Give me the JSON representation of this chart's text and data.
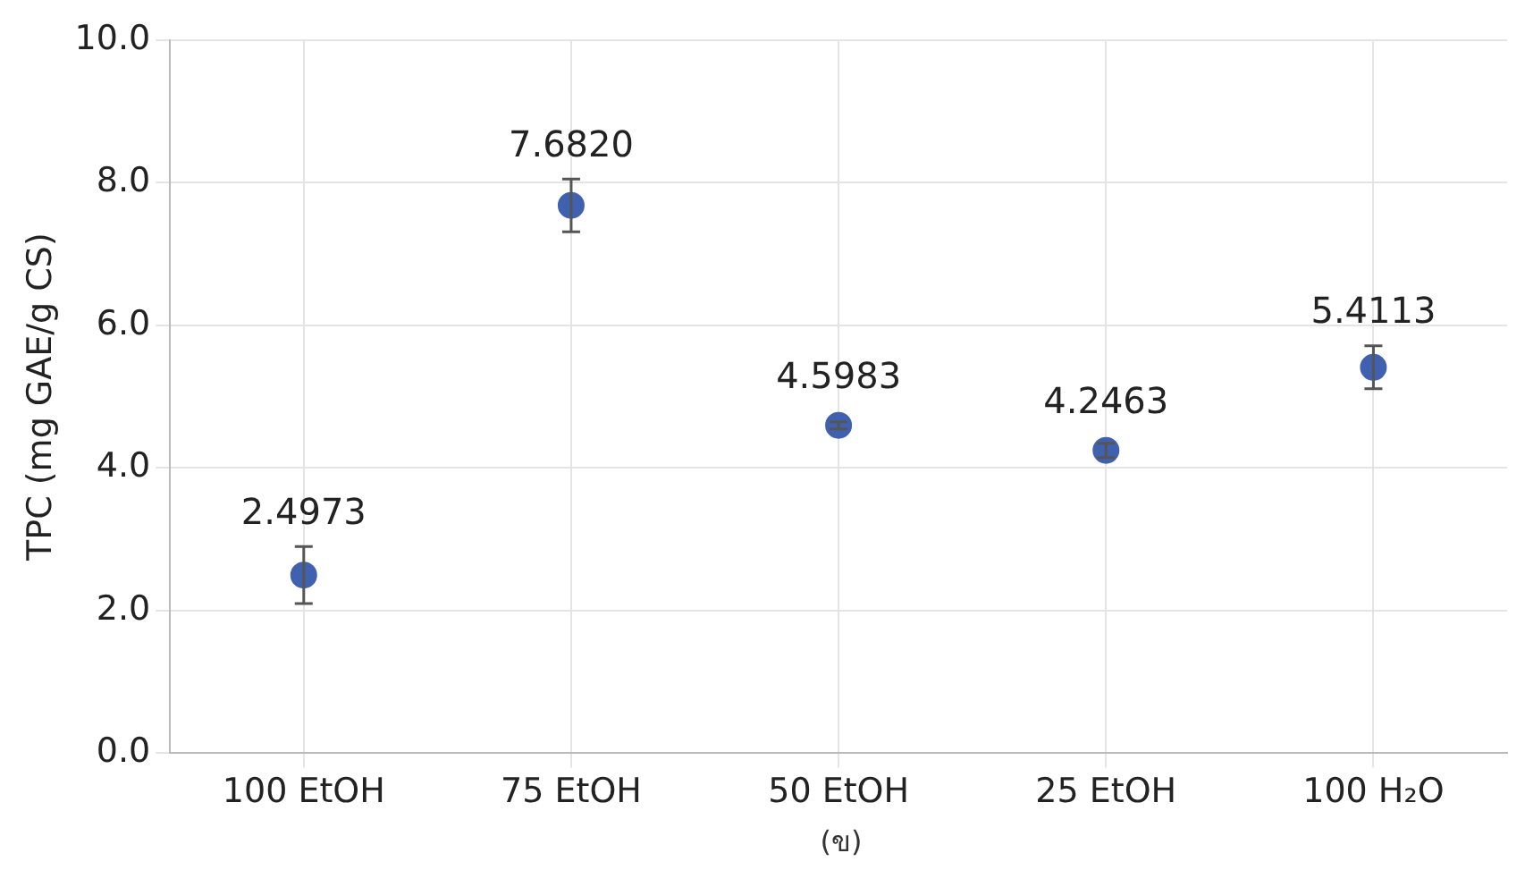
{
  "chart_data": {
    "type": "scatter",
    "ylabel": "TPC (mg GAE/g CS)",
    "categories": [
      "100 EtOH",
      "75 EtOH",
      "50 EtOH",
      "25 EtOH",
      "100 H₂O"
    ],
    "values": [
      2.4973,
      7.682,
      4.5983,
      4.2463,
      5.4113
    ],
    "errors": [
      0.4,
      0.37,
      0.05,
      0.1,
      0.3
    ],
    "value_labels": [
      "2.4973",
      "7.6820",
      "4.5983",
      "4.2463",
      "5.4113"
    ],
    "color": "#4060b0",
    "marker": "circle",
    "ylim": [
      0,
      10
    ],
    "yticks": [
      {
        "value": 0,
        "label": "0.0"
      },
      {
        "value": 2,
        "label": "2.0"
      },
      {
        "value": 4,
        "label": "4.0"
      },
      {
        "value": 6,
        "label": "6.0"
      },
      {
        "value": 8,
        "label": "8.0"
      },
      {
        "value": 10,
        "label": "10.0"
      }
    ],
    "grid": true,
    "legend": false,
    "annotations": [
      "(ข)"
    ]
  }
}
